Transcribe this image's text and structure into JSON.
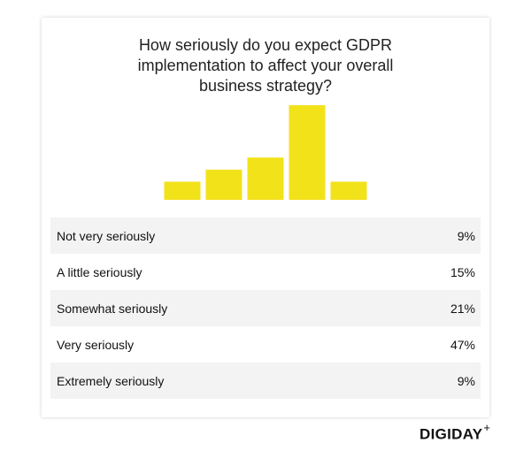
{
  "title_lines": [
    "How seriously do you expect GDPR",
    "implementation to affect your overall",
    "business strategy?"
  ],
  "brand": "DIGIDAY",
  "brand_mark": "+",
  "colors": {
    "bar": "#f2e21a",
    "row_shade": "#f3f3f3"
  },
  "chart_data": {
    "type": "bar",
    "title": "How seriously do you expect GDPR implementation to affect your overall business strategy?",
    "categories": [
      "Not very seriously",
      "A little seriously",
      "Somewhat seriously",
      "Very seriously",
      "Extremely seriously"
    ],
    "values": [
      9,
      15,
      21,
      47,
      9
    ],
    "value_labels": [
      "9%",
      "15%",
      "21%",
      "47%",
      "9%"
    ],
    "xlabel": "",
    "ylabel": "",
    "ylim": [
      0,
      47
    ],
    "grid": false,
    "legend": "none"
  }
}
